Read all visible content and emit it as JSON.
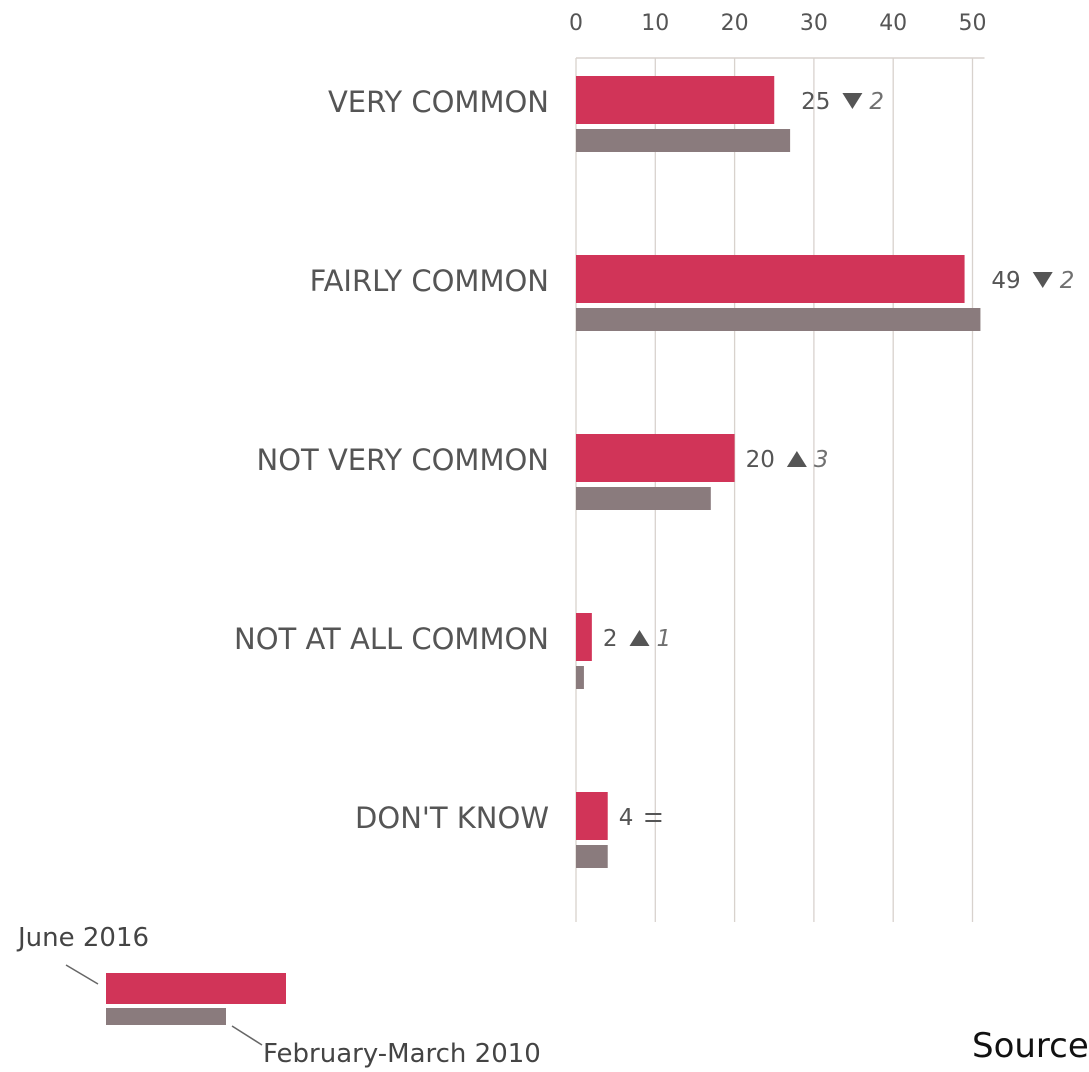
{
  "chart_data": {
    "type": "bar",
    "orientation": "horizontal",
    "categories": [
      "VERY COMMON",
      "FAIRLY COMMON",
      "NOT VERY COMMON",
      "NOT AT ALL COMMON",
      "DON'T KNOW"
    ],
    "series": [
      {
        "name": "June 2016",
        "values": [
          25,
          49,
          20,
          2,
          4
        ]
      },
      {
        "name": "February-March 2010",
        "values": [
          27,
          51,
          17,
          1,
          4
        ]
      }
    ],
    "value_labels": [
      "25",
      "49",
      "20",
      "2",
      "4"
    ],
    "changes": [
      {
        "direction": "down",
        "amount": "2"
      },
      {
        "direction": "down",
        "amount": "2"
      },
      {
        "direction": "up",
        "amount": "3"
      },
      {
        "direction": "up",
        "amount": "1"
      },
      {
        "direction": "equal",
        "amount": ""
      }
    ],
    "xlim": [
      0,
      50
    ],
    "xticks": [
      0,
      10,
      20,
      30,
      40,
      50
    ],
    "axis_position": "top",
    "grid": true,
    "legend_position": "bottom-left",
    "colors": {
      "june_2016": "#d13458",
      "feb_mar_2010": "#8a7b7d",
      "grid": "#d8d2cd"
    }
  },
  "source_label": "Source"
}
